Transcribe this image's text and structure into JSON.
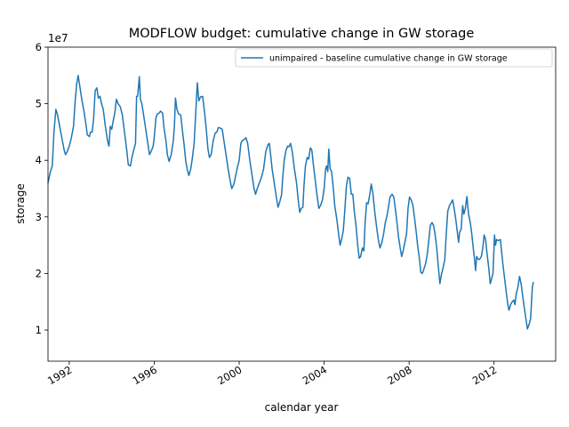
{
  "chart_data": {
    "type": "line",
    "title": "MODFLOW budget: cumulative change in GW storage",
    "xlabel": "calendar year",
    "ylabel": "storage",
    "y_offset_label": "1e7",
    "xlim": [
      1991.0,
      2014.9
    ],
    "ylim": [
      4.5,
      60
    ],
    "x_ticks": [
      1992,
      1996,
      2000,
      2004,
      2008,
      2012
    ],
    "x_tick_labels": [
      "1992",
      "1996",
      "2000",
      "2004",
      "2008",
      "2012"
    ],
    "y_ticks": [
      10,
      20,
      30,
      40,
      50,
      60
    ],
    "y_tick_labels": [
      "1",
      "2",
      "3",
      "4",
      "5",
      "6"
    ],
    "y_unit_note": "values in units of 1e6 (axis multiplier 1e7)",
    "grid": false,
    "legend": {
      "placement": "top-right",
      "entries": [
        "unimpaired - baseline cumulative change in GW storage"
      ]
    },
    "series": [
      {
        "name": "unimpaired - baseline cumulative change in GW storage",
        "color": "#1f77b4",
        "points": [
          [
            1991.0,
            36.0
          ],
          [
            1991.1,
            37.8
          ],
          [
            1991.2,
            39.0
          ],
          [
            1991.28,
            45.0
          ],
          [
            1991.37,
            49.0
          ],
          [
            1991.45,
            48.0
          ],
          [
            1991.55,
            46.0
          ],
          [
            1991.65,
            44.0
          ],
          [
            1991.75,
            42.0
          ],
          [
            1991.82,
            41.0
          ],
          [
            1991.9,
            41.5
          ],
          [
            1992.0,
            42.5
          ],
          [
            1992.1,
            44.0
          ],
          [
            1992.2,
            46.0
          ],
          [
            1992.28,
            50.5
          ],
          [
            1992.35,
            53.5
          ],
          [
            1992.42,
            55.0
          ],
          [
            1992.5,
            53.0
          ],
          [
            1992.6,
            50.5
          ],
          [
            1992.7,
            48.5
          ],
          [
            1992.8,
            46.0
          ],
          [
            1992.85,
            44.5
          ],
          [
            1992.95,
            44.2
          ],
          [
            1993.0,
            45.0
          ],
          [
            1993.08,
            45.0
          ],
          [
            1993.15,
            47.5
          ],
          [
            1993.22,
            52.3
          ],
          [
            1993.3,
            52.8
          ],
          [
            1993.37,
            51.0
          ],
          [
            1993.45,
            51.3
          ],
          [
            1993.52,
            50.0
          ],
          [
            1993.6,
            49.0
          ],
          [
            1993.7,
            46.0
          ],
          [
            1993.8,
            43.5
          ],
          [
            1993.87,
            42.5
          ],
          [
            1993.93,
            46.0
          ],
          [
            1994.0,
            45.5
          ],
          [
            1994.07,
            47.0
          ],
          [
            1994.15,
            48.5
          ],
          [
            1994.22,
            50.8
          ],
          [
            1994.3,
            50.0
          ],
          [
            1994.4,
            49.5
          ],
          [
            1994.5,
            48.0
          ],
          [
            1994.6,
            45.0
          ],
          [
            1994.7,
            42.0
          ],
          [
            1994.78,
            39.2
          ],
          [
            1994.88,
            39.0
          ],
          [
            1994.95,
            40.5
          ],
          [
            1995.05,
            42.0
          ],
          [
            1995.12,
            43.0
          ],
          [
            1995.17,
            51.3
          ],
          [
            1995.22,
            51.3
          ],
          [
            1995.3,
            54.8
          ],
          [
            1995.35,
            50.8
          ],
          [
            1995.42,
            50.0
          ],
          [
            1995.5,
            48.0
          ],
          [
            1995.6,
            45.5
          ],
          [
            1995.7,
            43.0
          ],
          [
            1995.78,
            41.0
          ],
          [
            1995.88,
            41.8
          ],
          [
            1995.95,
            42.5
          ],
          [
            1996.0,
            44.0
          ],
          [
            1996.08,
            47.5
          ],
          [
            1996.15,
            48.2
          ],
          [
            1996.22,
            48.3
          ],
          [
            1996.3,
            48.7
          ],
          [
            1996.4,
            48.3
          ],
          [
            1996.45,
            46.0
          ],
          [
            1996.55,
            43.5
          ],
          [
            1996.62,
            41.0
          ],
          [
            1996.7,
            39.8
          ],
          [
            1996.8,
            41.0
          ],
          [
            1996.9,
            43.5
          ],
          [
            1996.95,
            46.0
          ],
          [
            1997.0,
            51.0
          ],
          [
            1997.07,
            49.0
          ],
          [
            1997.15,
            48.2
          ],
          [
            1997.25,
            48.0
          ],
          [
            1997.32,
            45.5
          ],
          [
            1997.4,
            43.0
          ],
          [
            1997.48,
            40.0
          ],
          [
            1997.55,
            38.5
          ],
          [
            1997.63,
            37.3
          ],
          [
            1997.72,
            38.5
          ],
          [
            1997.8,
            40.5
          ],
          [
            1997.88,
            43.0
          ],
          [
            1997.95,
            48.0
          ],
          [
            1998.03,
            53.7
          ],
          [
            1998.1,
            50.5
          ],
          [
            1998.18,
            51.2
          ],
          [
            1998.28,
            51.3
          ],
          [
            1998.37,
            48.5
          ],
          [
            1998.45,
            45.5
          ],
          [
            1998.53,
            42.0
          ],
          [
            1998.6,
            40.5
          ],
          [
            1998.68,
            41.0
          ],
          [
            1998.78,
            43.5
          ],
          [
            1998.87,
            44.8
          ],
          [
            1998.95,
            45.0
          ],
          [
            1999.02,
            45.8
          ],
          [
            1999.1,
            45.7
          ],
          [
            1999.2,
            45.5
          ],
          [
            1999.3,
            43.0
          ],
          [
            1999.4,
            40.5
          ],
          [
            1999.48,
            38.5
          ],
          [
            1999.57,
            36.5
          ],
          [
            1999.65,
            35.0
          ],
          [
            1999.75,
            35.8
          ],
          [
            1999.83,
            37.2
          ],
          [
            1999.92,
            38.8
          ],
          [
            2000.0,
            40.0
          ],
          [
            2000.08,
            43.0
          ],
          [
            2000.15,
            43.5
          ],
          [
            2000.25,
            43.7
          ],
          [
            2000.32,
            44.0
          ],
          [
            2000.4,
            43.0
          ],
          [
            2000.5,
            40.0
          ],
          [
            2000.6,
            37.5
          ],
          [
            2000.7,
            35.0
          ],
          [
            2000.77,
            34.0
          ],
          [
            2000.85,
            35.0
          ],
          [
            2000.95,
            36.0
          ],
          [
            2001.05,
            37.0
          ],
          [
            2001.15,
            38.5
          ],
          [
            2001.25,
            41.5
          ],
          [
            2001.35,
            42.7
          ],
          [
            2001.42,
            43.0
          ],
          [
            2001.48,
            41.0
          ],
          [
            2001.55,
            38.5
          ],
          [
            2001.65,
            36.0
          ],
          [
            2001.75,
            33.5
          ],
          [
            2001.83,
            31.7
          ],
          [
            2001.9,
            32.5
          ],
          [
            2002.0,
            34.0
          ],
          [
            2002.05,
            37.0
          ],
          [
            2002.12,
            40.0
          ],
          [
            2002.2,
            41.7
          ],
          [
            2002.28,
            42.5
          ],
          [
            2002.35,
            42.4
          ],
          [
            2002.42,
            43.0
          ],
          [
            2002.5,
            41.5
          ],
          [
            2002.6,
            38.5
          ],
          [
            2002.7,
            36.0
          ],
          [
            2002.78,
            33.0
          ],
          [
            2002.85,
            30.8
          ],
          [
            2002.92,
            31.5
          ],
          [
            2003.0,
            31.7
          ],
          [
            2003.05,
            35.5
          ],
          [
            2003.12,
            39.0
          ],
          [
            2003.2,
            40.5
          ],
          [
            2003.27,
            40.2
          ],
          [
            2003.35,
            42.2
          ],
          [
            2003.42,
            41.8
          ],
          [
            2003.5,
            39.0
          ],
          [
            2003.58,
            36.5
          ],
          [
            2003.66,
            34.0
          ],
          [
            2003.75,
            31.5
          ],
          [
            2003.83,
            32.0
          ],
          [
            2003.92,
            33.0
          ],
          [
            2004.0,
            35.0
          ],
          [
            2004.07,
            38.5
          ],
          [
            2004.12,
            39.0
          ],
          [
            2004.17,
            38.0
          ],
          [
            2004.22,
            42.0
          ],
          [
            2004.28,
            38.5
          ],
          [
            2004.35,
            38.0
          ],
          [
            2004.42,
            35.5
          ],
          [
            2004.5,
            32.0
          ],
          [
            2004.6,
            29.5
          ],
          [
            2004.68,
            27.0
          ],
          [
            2004.75,
            25.0
          ],
          [
            2004.82,
            26.0
          ],
          [
            2004.9,
            27.5
          ],
          [
            2004.97,
            31.0
          ],
          [
            2005.05,
            35.5
          ],
          [
            2005.12,
            37.0
          ],
          [
            2005.2,
            36.8
          ],
          [
            2005.28,
            34.0
          ],
          [
            2005.35,
            34.0
          ],
          [
            2005.42,
            31.0
          ],
          [
            2005.5,
            28.5
          ],
          [
            2005.58,
            25.0
          ],
          [
            2005.65,
            22.7
          ],
          [
            2005.72,
            23.0
          ],
          [
            2005.8,
            24.5
          ],
          [
            2005.87,
            24.0
          ],
          [
            2005.93,
            29.0
          ],
          [
            2006.0,
            32.5
          ],
          [
            2006.07,
            32.3
          ],
          [
            2006.15,
            34.0
          ],
          [
            2006.22,
            35.8
          ],
          [
            2006.3,
            34.0
          ],
          [
            2006.38,
            31.0
          ],
          [
            2006.46,
            28.5
          ],
          [
            2006.55,
            26.0
          ],
          [
            2006.63,
            24.5
          ],
          [
            2006.72,
            25.5
          ],
          [
            2006.8,
            27.0
          ],
          [
            2006.88,
            29.0
          ],
          [
            2006.95,
            30.0
          ],
          [
            2007.02,
            31.5
          ],
          [
            2007.1,
            33.5
          ],
          [
            2007.2,
            34.0
          ],
          [
            2007.28,
            33.5
          ],
          [
            2007.35,
            31.5
          ],
          [
            2007.43,
            29.0
          ],
          [
            2007.5,
            26.5
          ],
          [
            2007.58,
            24.5
          ],
          [
            2007.65,
            23.0
          ],
          [
            2007.72,
            24.0
          ],
          [
            2007.8,
            25.5
          ],
          [
            2007.88,
            27.0
          ],
          [
            2007.95,
            31.5
          ],
          [
            2008.02,
            33.5
          ],
          [
            2008.1,
            33.0
          ],
          [
            2008.18,
            32.0
          ],
          [
            2008.25,
            30.0
          ],
          [
            2008.33,
            27.5
          ],
          [
            2008.4,
            25.0
          ],
          [
            2008.48,
            22.8
          ],
          [
            2008.55,
            20.2
          ],
          [
            2008.62,
            20.0
          ],
          [
            2008.7,
            20.8
          ],
          [
            2008.78,
            21.8
          ],
          [
            2008.86,
            23.5
          ],
          [
            2008.93,
            26.0
          ],
          [
            2009.0,
            28.5
          ],
          [
            2009.08,
            29.0
          ],
          [
            2009.15,
            28.5
          ],
          [
            2009.22,
            27.0
          ],
          [
            2009.3,
            24.5
          ],
          [
            2009.38,
            21.0
          ],
          [
            2009.45,
            18.2
          ],
          [
            2009.52,
            19.8
          ],
          [
            2009.6,
            21.0
          ],
          [
            2009.68,
            22.5
          ],
          [
            2009.75,
            27.0
          ],
          [
            2009.82,
            31.0
          ],
          [
            2009.9,
            32.0
          ],
          [
            2009.98,
            32.5
          ],
          [
            2010.05,
            33.0
          ],
          [
            2010.12,
            31.5
          ],
          [
            2010.2,
            29.5
          ],
          [
            2010.28,
            27.0
          ],
          [
            2010.33,
            25.5
          ],
          [
            2010.38,
            27.3
          ],
          [
            2010.45,
            27.8
          ],
          [
            2010.52,
            32.0
          ],
          [
            2010.58,
            30.5
          ],
          [
            2010.65,
            31.5
          ],
          [
            2010.72,
            33.6
          ],
          [
            2010.8,
            30.5
          ],
          [
            2010.88,
            29.0
          ],
          [
            2010.95,
            27.0
          ],
          [
            2011.02,
            24.5
          ],
          [
            2011.08,
            22.5
          ],
          [
            2011.13,
            20.5
          ],
          [
            2011.18,
            23.0
          ],
          [
            2011.25,
            22.5
          ],
          [
            2011.32,
            22.5
          ],
          [
            2011.4,
            23.0
          ],
          [
            2011.47,
            24.5
          ],
          [
            2011.53,
            26.8
          ],
          [
            2011.6,
            26.0
          ],
          [
            2011.67,
            23.5
          ],
          [
            2011.75,
            21.0
          ],
          [
            2011.82,
            18.2
          ],
          [
            2011.88,
            19.0
          ],
          [
            2011.95,
            20.0
          ],
          [
            2012.02,
            26.8
          ],
          [
            2012.07,
            25.0
          ],
          [
            2012.12,
            26.0
          ],
          [
            2012.2,
            25.8
          ],
          [
            2012.3,
            26.0
          ],
          [
            2012.35,
            24.0
          ],
          [
            2012.42,
            21.5
          ],
          [
            2012.5,
            19.0
          ],
          [
            2012.58,
            16.5
          ],
          [
            2012.65,
            14.5
          ],
          [
            2012.7,
            13.5
          ],
          [
            2012.78,
            14.5
          ],
          [
            2012.85,
            15.0
          ],
          [
            2012.93,
            15.3
          ],
          [
            2012.98,
            14.5
          ],
          [
            2013.05,
            16.5
          ],
          [
            2013.12,
            17.5
          ],
          [
            2013.2,
            19.5
          ],
          [
            2013.28,
            18.0
          ],
          [
            2013.35,
            16.0
          ],
          [
            2013.42,
            14.0
          ],
          [
            2013.5,
            12.0
          ],
          [
            2013.57,
            10.2
          ],
          [
            2013.65,
            11.0
          ],
          [
            2013.72,
            12.0
          ],
          [
            2013.8,
            17.5
          ],
          [
            2013.85,
            18.5
          ]
        ]
      }
    ]
  }
}
